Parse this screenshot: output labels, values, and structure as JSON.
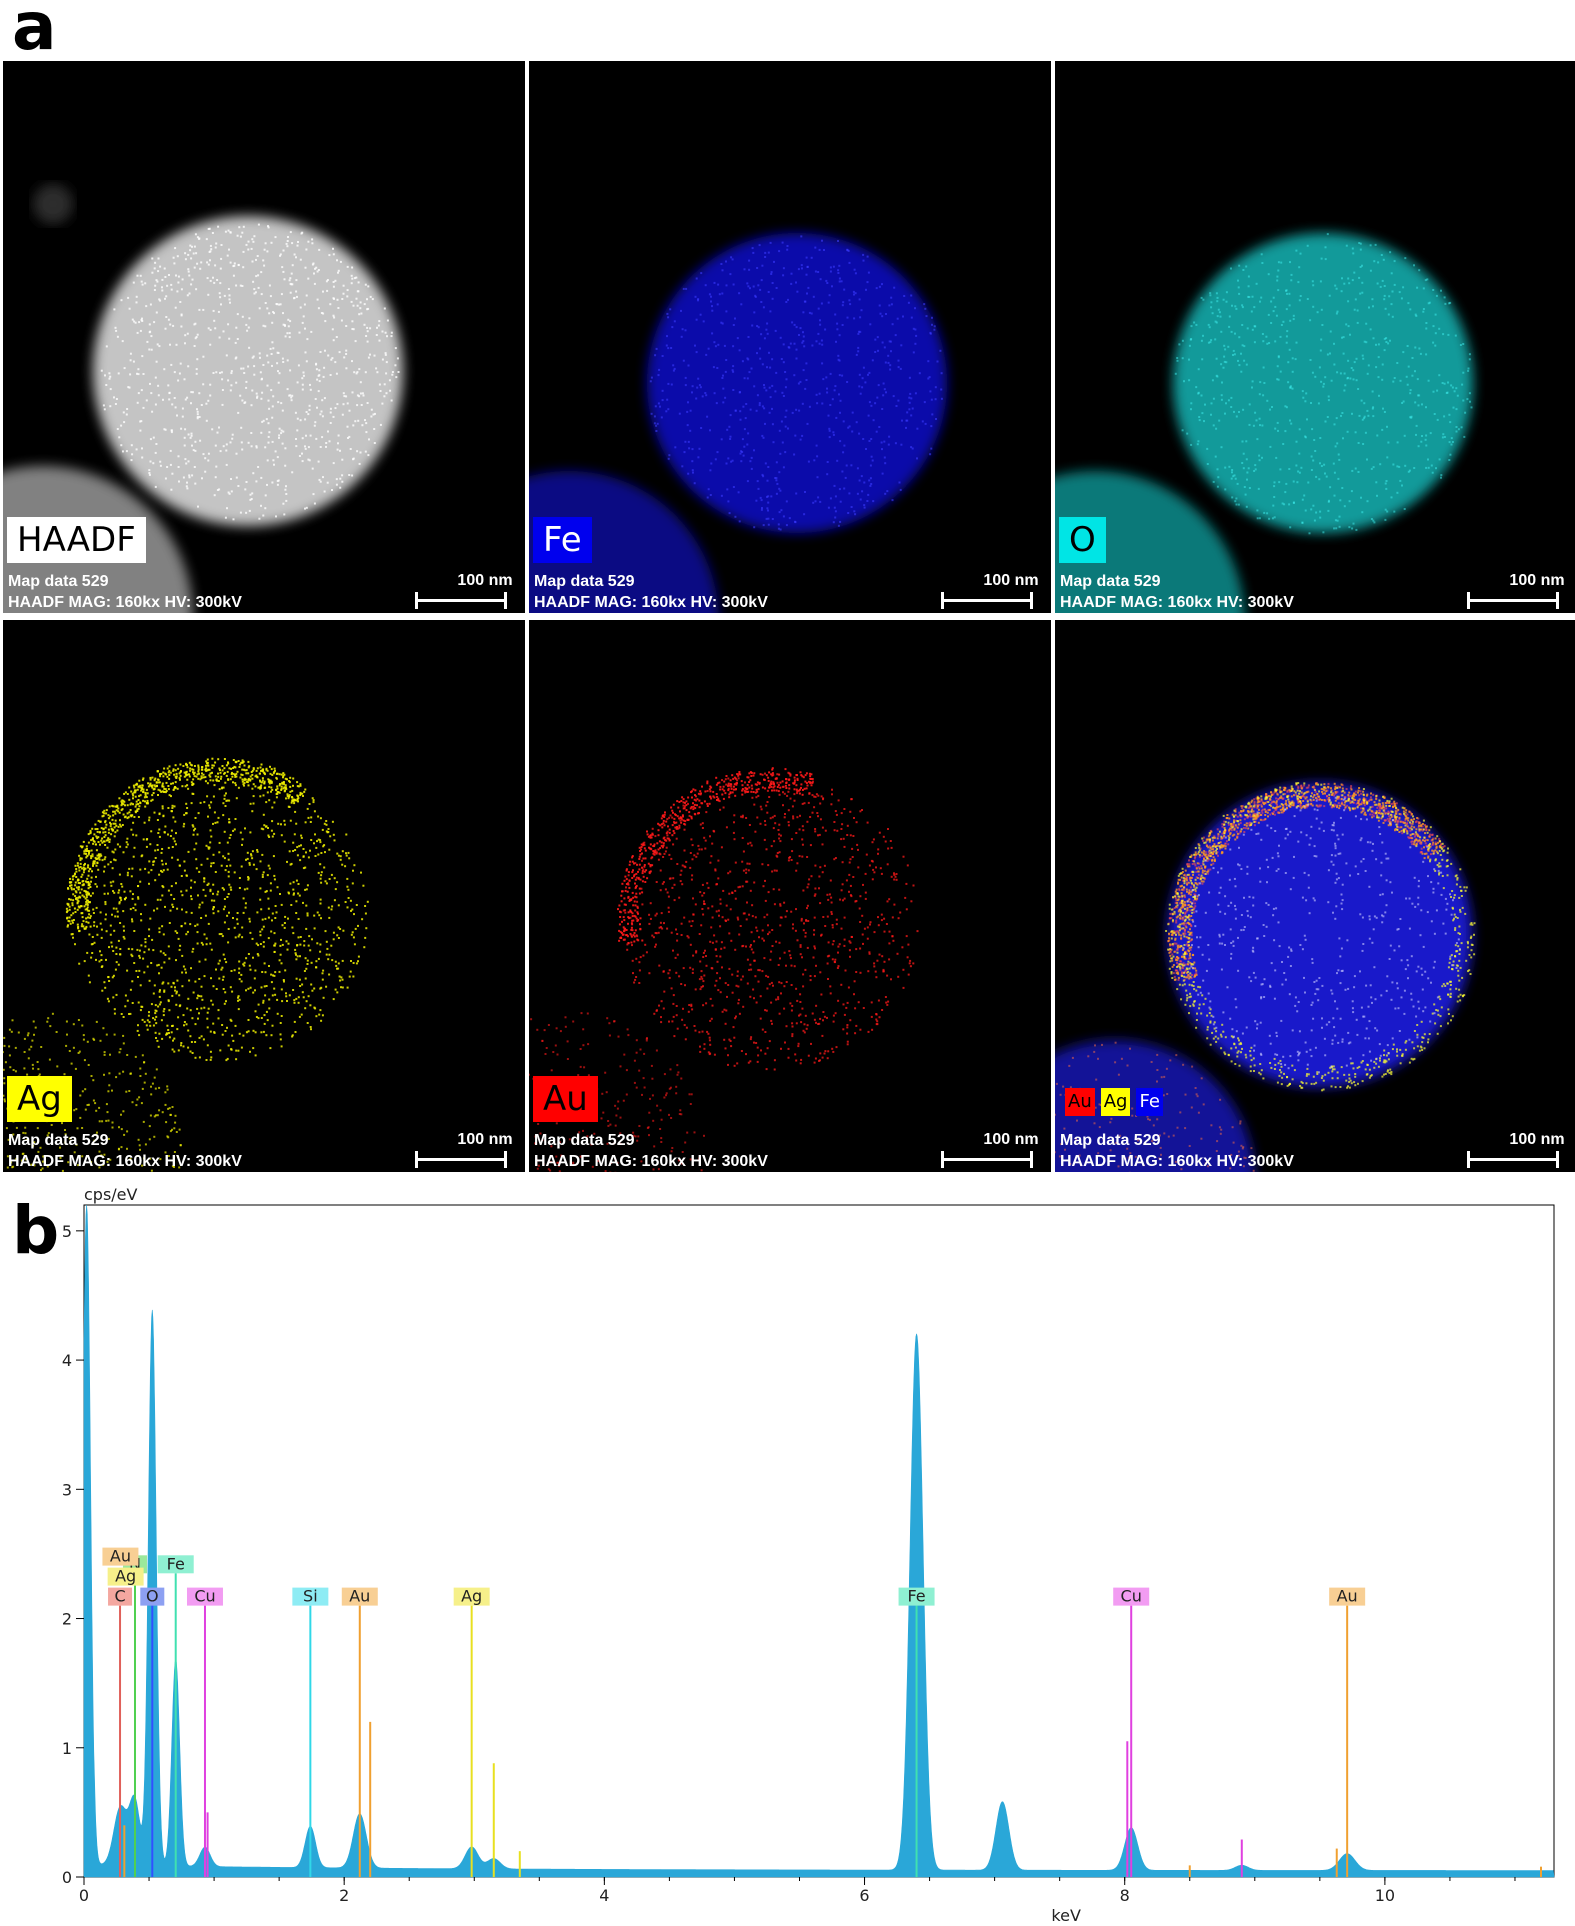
{
  "panel_letters": {
    "a": "a",
    "b": "b"
  },
  "colors": {
    "haadf": "#ffffff",
    "fe": "#1a1aff",
    "o": "#19e3e3",
    "ag": "#f0f000",
    "au": "#ff1a1a",
    "spectrum": "#2aa7d8"
  },
  "map_meta": {
    "line1": "Map data 529",
    "line2": "HAADF  MAG: 160kx  HV: 300kV",
    "scale_bar": "100 nm"
  },
  "maps": [
    {
      "label": "HAADF",
      "tag_bg": "#ffffff",
      "tag_fg": "#000000"
    },
    {
      "label": "Fe",
      "tag_bg": "#0000ee",
      "tag_fg": "#ffffff"
    },
    {
      "label": "O",
      "tag_bg": "#00e5e5",
      "tag_fg": "#000000"
    },
    {
      "label": "Ag",
      "tag_bg": "#ffff00",
      "tag_fg": "#000000"
    },
    {
      "label": "Au",
      "tag_bg": "#ff0000",
      "tag_fg": "#000000"
    },
    {
      "label": "",
      "tag_bg": "",
      "tag_fg": "",
      "overlay_tags": [
        {
          "label": "Au",
          "bg": "#ff0000",
          "fg": "#000000"
        },
        {
          "label": "Ag",
          "bg": "#ffff00",
          "fg": "#000000"
        },
        {
          "label": "Fe",
          "bg": "#0000ee",
          "fg": "#ffffff"
        }
      ]
    }
  ],
  "chart_data": {
    "type": "area",
    "title": "",
    "xlabel": "keV",
    "ylabel": "cps/eV",
    "xlim": [
      0,
      11.3
    ],
    "ylim": [
      0,
      5.2
    ],
    "xticks": [
      0,
      2,
      4,
      6,
      8,
      10
    ],
    "yticks": [
      0,
      1,
      2,
      3,
      4,
      5
    ],
    "grid": false,
    "spectrum_peaks": [
      {
        "center": 0.02,
        "height": 5.2,
        "width": 0.03
      },
      {
        "center": 0.28,
        "height": 0.45,
        "width": 0.05
      },
      {
        "center": 0.39,
        "height": 0.5,
        "width": 0.04
      },
      {
        "center": 0.525,
        "height": 4.3,
        "width": 0.03
      },
      {
        "center": 0.705,
        "height": 1.6,
        "width": 0.03
      },
      {
        "center": 0.93,
        "height": 0.15,
        "width": 0.04
      },
      {
        "center": 1.74,
        "height": 0.32,
        "width": 0.04
      },
      {
        "center": 2.12,
        "height": 0.42,
        "width": 0.05
      },
      {
        "center": 2.98,
        "height": 0.17,
        "width": 0.05
      },
      {
        "center": 3.15,
        "height": 0.08,
        "width": 0.05
      },
      {
        "center": 6.4,
        "height": 4.15,
        "width": 0.05
      },
      {
        "center": 7.06,
        "height": 0.53,
        "width": 0.05
      },
      {
        "center": 8.05,
        "height": 0.33,
        "width": 0.05
      },
      {
        "center": 8.9,
        "height": 0.04,
        "width": 0.05
      },
      {
        "center": 9.71,
        "height": 0.13,
        "width": 0.06
      }
    ],
    "element_markers": [
      {
        "element": "C",
        "energy": 0.277,
        "height": 2.1,
        "color": "#e0605a",
        "label_bg": "#f4a7a0"
      },
      {
        "element": "N",
        "energy": 0.392,
        "height": 2.35,
        "color": "#50d050",
        "label_bg": "#9be89b"
      },
      {
        "element": "O",
        "energy": 0.525,
        "height": 2.1,
        "color": "#3050ff",
        "label_bg": "#8da0f2"
      },
      {
        "element": "Fe",
        "energy": 0.705,
        "height": 2.35,
        "color": "#40e0b0",
        "label_bg": "#8ff0d2"
      },
      {
        "element": "Cu",
        "energy": 0.93,
        "height": 2.1,
        "color": "#e040e0",
        "label_bg": "#f29cf2"
      },
      {
        "element": "Si",
        "energy": 1.74,
        "height": 2.1,
        "color": "#30d8e8",
        "label_bg": "#8eecf4"
      },
      {
        "element": "Au",
        "energy": 2.12,
        "height": 2.1,
        "color": "#f0a030",
        "label_bg": "#f8cf94"
      },
      {
        "element": "Ag",
        "energy": 2.98,
        "height": 2.1,
        "color": "#e8e020",
        "label_bg": "#f6f08a"
      },
      {
        "element": "Fe",
        "energy": 6.4,
        "height": 2.1,
        "color": "#40e0b0",
        "label_bg": "#8ff0d2"
      },
      {
        "element": "Cu",
        "energy": 8.05,
        "height": 2.1,
        "color": "#e040e0",
        "label_bg": "#f29cf2"
      },
      {
        "element": "Au",
        "energy": 9.71,
        "height": 2.1,
        "color": "#f0a030",
        "label_bg": "#f8cf94"
      }
    ],
    "stacked_labels": [
      {
        "element": "Au",
        "energy": 0.28,
        "row": 2,
        "label_bg": "#f8cf94"
      },
      {
        "element": "Ag",
        "energy": 0.32,
        "row": 1,
        "label_bg": "#f6f08a"
      }
    ],
    "minor_lines": [
      {
        "energy": 0.31,
        "height": 0.4,
        "color": "#f0a030"
      },
      {
        "energy": 2.2,
        "height": 1.2,
        "color": "#f0a030"
      },
      {
        "energy": 3.15,
        "height": 0.88,
        "color": "#e8e020"
      },
      {
        "energy": 3.35,
        "height": 0.2,
        "color": "#e8e020"
      },
      {
        "energy": 0.95,
        "height": 0.5,
        "color": "#e040e0"
      },
      {
        "energy": 8.02,
        "height": 1.05,
        "color": "#e040e0"
      },
      {
        "energy": 8.9,
        "height": 0.29,
        "color": "#e040e0"
      },
      {
        "energy": 9.63,
        "height": 0.22,
        "color": "#f0a030"
      },
      {
        "energy": 8.5,
        "height": 0.09,
        "color": "#f0a030"
      },
      {
        "energy": 11.2,
        "height": 0.08,
        "color": "#f0a030"
      }
    ]
  }
}
